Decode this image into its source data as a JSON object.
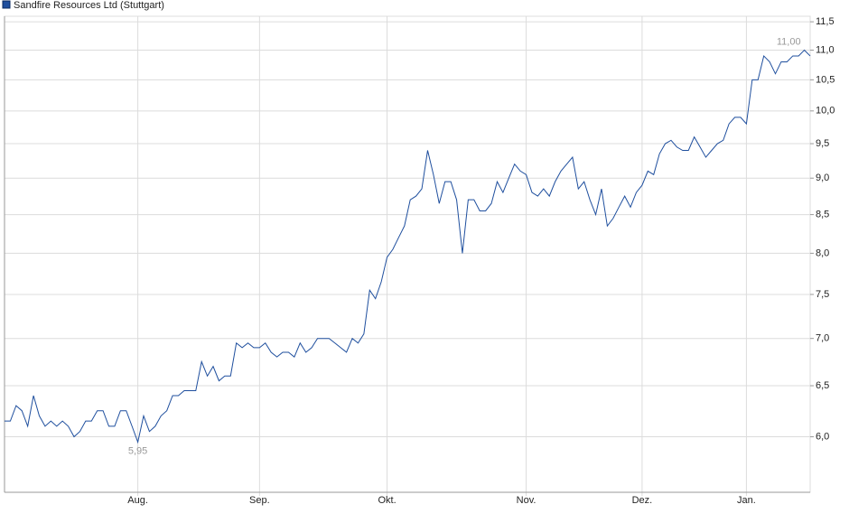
{
  "chart_data": {
    "type": "line",
    "title": "Sandfire Resources Ltd (Stuttgart)",
    "color": "#1f4f9e",
    "log_scale": true,
    "grid": true,
    "categories": [
      null,
      null,
      null,
      null,
      null,
      null,
      null,
      null,
      null,
      null,
      null,
      null,
      null,
      null,
      null,
      null,
      null,
      null,
      null,
      null,
      null,
      null,
      null,
      "Aug.",
      null,
      null,
      null,
      null,
      null,
      null,
      null,
      null,
      null,
      null,
      null,
      null,
      null,
      null,
      null,
      null,
      null,
      null,
      null,
      null,
      "Sep.",
      null,
      null,
      null,
      null,
      null,
      null,
      null,
      null,
      null,
      null,
      null,
      null,
      null,
      null,
      null,
      null,
      null,
      null,
      null,
      null,
      null,
      "Okt.",
      null,
      null,
      null,
      null,
      null,
      null,
      null,
      null,
      null,
      null,
      null,
      null,
      null,
      null,
      null,
      null,
      null,
      null,
      null,
      null,
      null,
      null,
      null,
      "Nov.",
      null,
      null,
      null,
      null,
      null,
      null,
      null,
      null,
      null,
      null,
      null,
      null,
      null,
      null,
      null,
      null,
      null,
      null,
      null,
      "Dez.",
      null,
      null,
      null,
      null,
      null,
      null,
      null,
      null,
      null,
      null,
      null,
      null,
      null,
      null,
      null,
      null,
      null,
      "Jan.",
      null,
      null,
      null,
      null,
      null,
      null,
      null,
      null,
      null,
      null,
      null
    ],
    "values": [
      6.15,
      6.15,
      6.3,
      6.25,
      6.1,
      6.4,
      6.2,
      6.1,
      6.15,
      6.1,
      6.15,
      6.1,
      6.0,
      6.05,
      6.15,
      6.15,
      6.25,
      6.25,
      6.1,
      6.1,
      6.25,
      6.25,
      6.1,
      5.95,
      6.2,
      6.05,
      6.1,
      6.2,
      6.25,
      6.4,
      6.4,
      6.45,
      6.45,
      6.45,
      6.75,
      6.6,
      6.7,
      6.55,
      6.6,
      6.6,
      6.95,
      6.9,
      6.95,
      6.9,
      6.9,
      6.95,
      6.85,
      6.8,
      6.85,
      6.85,
      6.8,
      6.95,
      6.85,
      6.9,
      7.0,
      7.0,
      7.0,
      6.95,
      6.9,
      6.85,
      7.0,
      6.95,
      7.05,
      7.55,
      7.45,
      7.65,
      7.95,
      8.05,
      8.2,
      8.35,
      8.7,
      8.75,
      8.85,
      9.4,
      9.05,
      8.65,
      8.95,
      8.95,
      8.7,
      8.0,
      8.7,
      8.7,
      8.55,
      8.55,
      8.65,
      8.95,
      8.8,
      9.0,
      9.2,
      9.1,
      9.05,
      8.8,
      8.75,
      8.85,
      8.75,
      8.95,
      9.1,
      9.2,
      9.3,
      8.85,
      8.95,
      8.7,
      8.5,
      8.85,
      8.35,
      8.45,
      8.6,
      8.75,
      8.6,
      8.8,
      8.9,
      9.1,
      9.05,
      9.35,
      9.5,
      9.55,
      9.45,
      9.4,
      9.4,
      9.6,
      9.45,
      9.3,
      9.4,
      9.5,
      9.55,
      9.8,
      9.9,
      9.9,
      9.8,
      10.5,
      10.5,
      10.9,
      10.8,
      10.6,
      10.8,
      10.8,
      10.9,
      10.9,
      11.0,
      10.9
    ],
    "ylim": [
      5.5,
      11.6
    ],
    "yticks": [
      {
        "value": 6,
        "label": "6,0"
      },
      {
        "value": 6.5,
        "label": "6,5"
      },
      {
        "value": 7,
        "label": "7,0"
      },
      {
        "value": 7.5,
        "label": "7,5"
      },
      {
        "value": 8,
        "label": "8,0"
      },
      {
        "value": 8.5,
        "label": "8,5"
      },
      {
        "value": 9,
        "label": "9,0"
      },
      {
        "value": 9.5,
        "label": "9,5"
      },
      {
        "value": 10,
        "label": "10,0"
      },
      {
        "value": 10.5,
        "label": "10,5"
      },
      {
        "value": 11,
        "label": "11,0"
      },
      {
        "value": 11.5,
        "label": "11,5"
      }
    ],
    "annotations": [
      {
        "label": "5,95",
        "value": 5.95
      },
      {
        "label": "11,00",
        "value": 11.0
      }
    ]
  }
}
